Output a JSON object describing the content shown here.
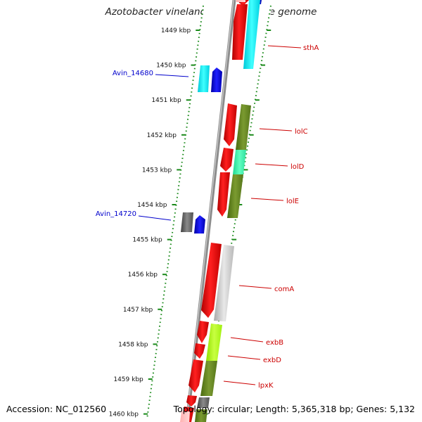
{
  "title": "Azotobacter vinelandii DJ, complete genome",
  "footer": {
    "accession": "Accession: NC_012560",
    "stats": "Topology: circular; Length: 5,365,318 bp; Genes: 5,132"
  },
  "colors": {
    "backbone": "#7a7a7a",
    "ruler": "#1a8a1a",
    "red_feature": "#ee0000",
    "blue_label": "#0000cc",
    "red_label": "#cc0000"
  },
  "ticks": [
    {
      "label": "1449 kbp"
    },
    {
      "label": "1450 kbp"
    },
    {
      "label": "1451 kbp"
    },
    {
      "label": "1452 kbp"
    },
    {
      "label": "1453 kbp"
    },
    {
      "label": "1454 kbp"
    },
    {
      "label": "1455 kbp"
    },
    {
      "label": "1456 kbp"
    },
    {
      "label": "1457 kbp"
    },
    {
      "label": "1458 kbp"
    },
    {
      "label": "1459 kbp"
    },
    {
      "label": "1460 kbp"
    }
  ],
  "gene_labels": [
    {
      "text": "sthA",
      "color": "red"
    },
    {
      "text": "Avin_14680",
      "color": "blue"
    },
    {
      "text": "lolC",
      "color": "red"
    },
    {
      "text": "lolD",
      "color": "red"
    },
    {
      "text": "lolE",
      "color": "red"
    },
    {
      "text": "Avin_14720",
      "color": "blue"
    },
    {
      "text": "comA",
      "color": "red"
    },
    {
      "text": "exbB",
      "color": "red"
    },
    {
      "text": "exbD",
      "color": "red"
    },
    {
      "text": "lpxK",
      "color": "red"
    }
  ]
}
